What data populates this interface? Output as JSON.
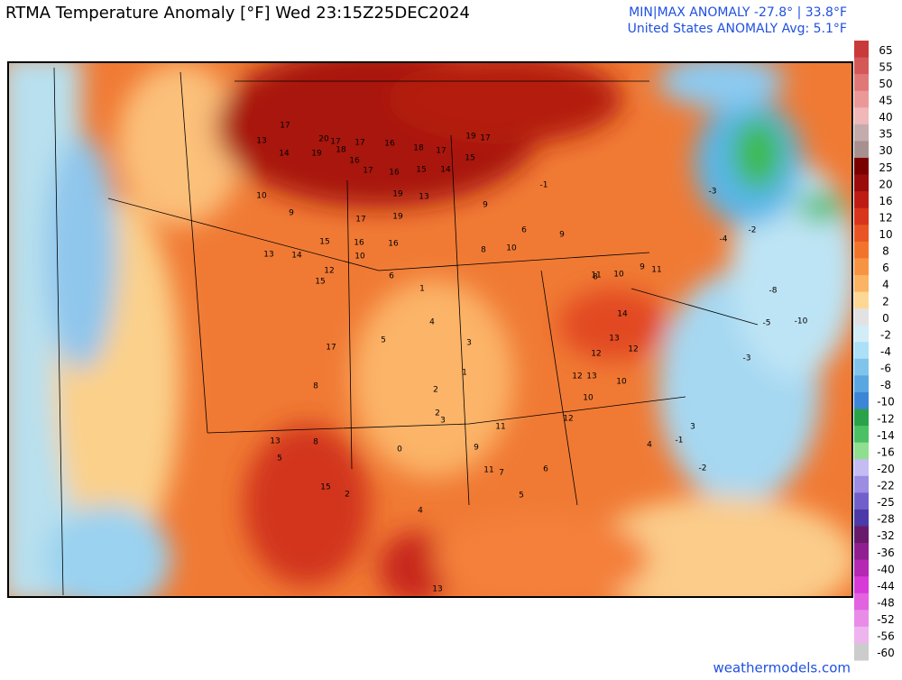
{
  "header": {
    "title": "RTMA Temperature Anomaly [°F]  Wed 23:15Z25DEC2024",
    "stats_line": "MIN|MAX ANOMALY -27.8° | 33.8°F",
    "avg_line": "United States ANOMALY Avg: 5.1°F"
  },
  "colorbar": {
    "ticks": [
      65,
      55,
      50,
      45,
      40,
      35,
      30,
      25,
      20,
      16,
      12,
      10,
      8,
      6,
      4,
      2,
      0,
      -2,
      -4,
      -6,
      -8,
      -10,
      -12,
      -14,
      -16,
      -20,
      -22,
      -25,
      -28,
      -32,
      -36,
      -40,
      -44,
      -48,
      -52,
      -56,
      -60
    ],
    "colors": [
      "#c83a3a",
      "#d45858",
      "#e07878",
      "#eb9898",
      "#f0b8b8",
      "#c4acac",
      "#a89090",
      "#7a0000",
      "#9a0c0c",
      "#bd1c14",
      "#d9341c",
      "#e85424",
      "#f2742c",
      "#f79444",
      "#fab464",
      "#fdd894",
      "#e2e2e2",
      "#d2ecf8",
      "#ace0f6",
      "#80c4ec",
      "#5aa6e0",
      "#3c86d6",
      "#2aa24a",
      "#4cc064",
      "#90de90",
      "#c4bcf2",
      "#9c8ce2",
      "#7260ca",
      "#4c3aa8",
      "#6a1a6a",
      "#901e90",
      "#b428b4",
      "#d83ad8",
      "#e262e2",
      "#e88ce8",
      "#eeb4ee",
      "#cccccc"
    ]
  },
  "map": {
    "labels": [
      17,
      20,
      17,
      17,
      16,
      18,
      17,
      19,
      17,
      13,
      14,
      19,
      18,
      16,
      17,
      16,
      15,
      14,
      15,
      19,
      13,
      10,
      9,
      17,
      19,
      16,
      16,
      15,
      13,
      14,
      17,
      12,
      10,
      9,
      6,
      8,
      10,
      9,
      8,
      9,
      11,
      10,
      11,
      12,
      14,
      13,
      12,
      13,
      12,
      10,
      10,
      6,
      5,
      4,
      3,
      2,
      1,
      0,
      -1,
      -3,
      -5,
      -4,
      -2,
      -8,
      -10,
      -3,
      1,
      2,
      11,
      15,
      15,
      13,
      8,
      5,
      2,
      3,
      4,
      9,
      11,
      12,
      6,
      13,
      7,
      5,
      -1,
      -2,
      3,
      4,
      8
    ]
  },
  "footer": {
    "watermark": "weathermodels.com"
  }
}
